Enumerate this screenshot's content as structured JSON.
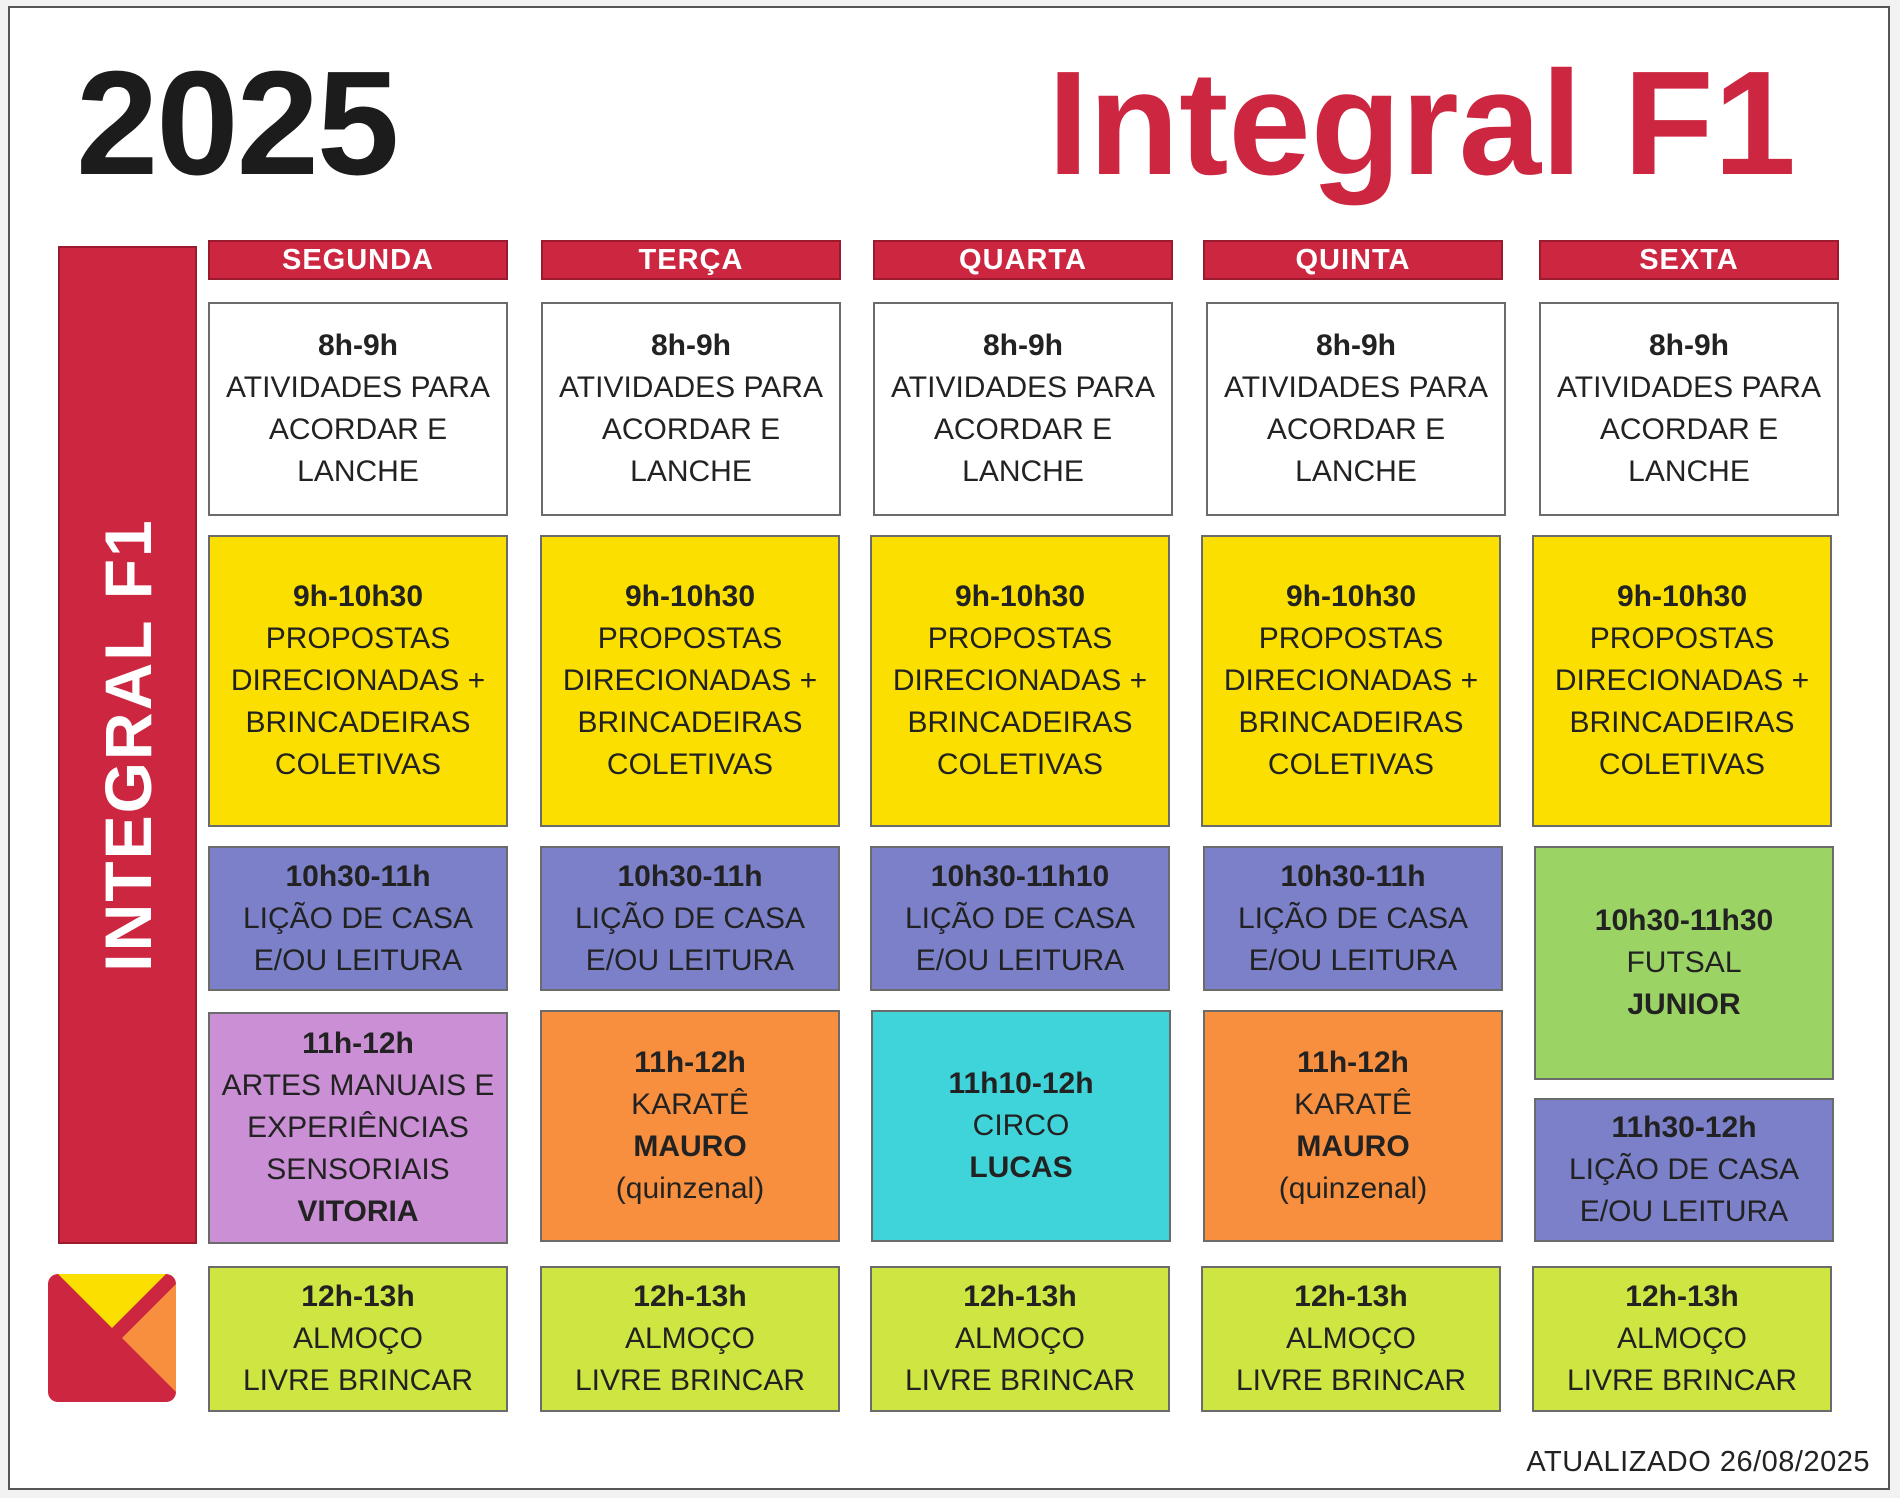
{
  "header": {
    "year": "2025",
    "title": "Integral F1"
  },
  "sidebar": {
    "label": "INTEGRAL F1"
  },
  "days": [
    "SEGUNDA",
    "TERÇA",
    "QUARTA",
    "QUINTA",
    "SEXTA"
  ],
  "schedule": {
    "breakfast": {
      "time": "8h-9h",
      "activity": "ATIVIDADES PARA\nACORDAR E\nLANCHE"
    },
    "morning": {
      "time": "9h-10h30",
      "activity": "PROPOSTAS\nDIRECIONADAS +\nBRINCADEIRAS\nCOLETIVAS"
    },
    "homework": {
      "time": "10h30-11h",
      "activity": "LIÇÃO DE CASA\nE/OU LEITURA"
    },
    "homework_wed": {
      "time": "10h30-11h10",
      "activity": "LIÇÃO DE CASA\nE/OU LEITURA"
    },
    "futsal": {
      "time": "10h30-11h30",
      "activity": "FUTSAL",
      "teacher": "JUNIOR"
    },
    "arts": {
      "time": "11h-12h",
      "activity": "ARTES MANUAIS E\nEXPERIÊNCIAS\nSENSORIAIS",
      "teacher": "VITORIA"
    },
    "karate": {
      "time": "11h-12h",
      "activity": "KARATÊ",
      "teacher": "MAURO",
      "note": "(quinzenal)"
    },
    "circus": {
      "time": "11h10-12h",
      "activity": "CIRCO",
      "teacher": "LUCAS"
    },
    "homework_fri": {
      "time": "11h30-12h",
      "activity": "LIÇÃO DE CASA\nE/OU LEITURA"
    },
    "lunch": {
      "time": "12h-13h",
      "activity": "ALMOÇO\nLIVRE BRINCAR"
    }
  },
  "footer": {
    "updated": "ATUALIZADO 26/08/2025"
  },
  "colors": {
    "brand_red": "#cc2640",
    "yellow": "#fadf00",
    "blue": "#7b80c8",
    "green": "#9bd465",
    "lime": "#cfe642",
    "orange": "#f78f3e",
    "cyan": "#3fd3da",
    "purple": "#cb8fd6"
  }
}
